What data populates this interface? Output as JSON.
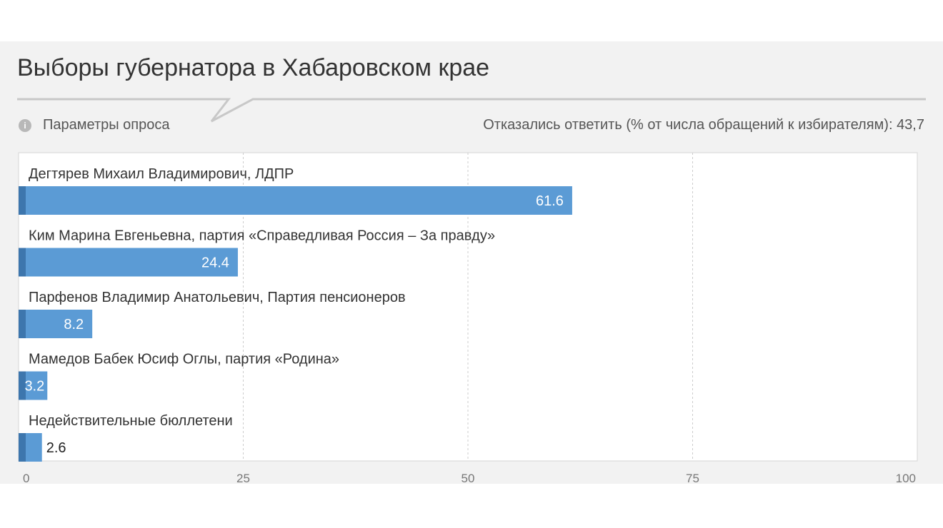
{
  "header": {
    "title": "Выборы губернатора в Хабаровском крае",
    "params_label": "Параметры опроса",
    "info_icon": "info-icon",
    "refused_label": "Отказались ответить (% от числа обращений к избирателям): 43,7"
  },
  "colors": {
    "bar": "#5b9bd5",
    "bar_edge": "#3d76ad",
    "grid": "#cccccc",
    "plot_border": "#d6d6d6"
  },
  "chart_data": {
    "type": "bar",
    "orientation": "horizontal",
    "categories": [
      "Дегтярев Михаил Владимирович, ЛДПР",
      "Ким Марина Евгеньевна, партия «Справедливая Россия – За правду»",
      "Парфенов Владимир Анатольевич, Партия пенсионеров",
      "Мамедов Бабек Юсиф Оглы, партия «Родина»",
      "Недействительные бюллетени"
    ],
    "values": [
      61.6,
      24.4,
      8.2,
      3.2,
      2.6
    ],
    "value_labels": [
      "61.6",
      "24.4",
      "8.2",
      "3.2",
      "2.6"
    ],
    "xlim": [
      0,
      100
    ],
    "xticks": [
      "0",
      "25",
      "50",
      "75",
      "100"
    ],
    "grid": true,
    "legend": "none"
  }
}
